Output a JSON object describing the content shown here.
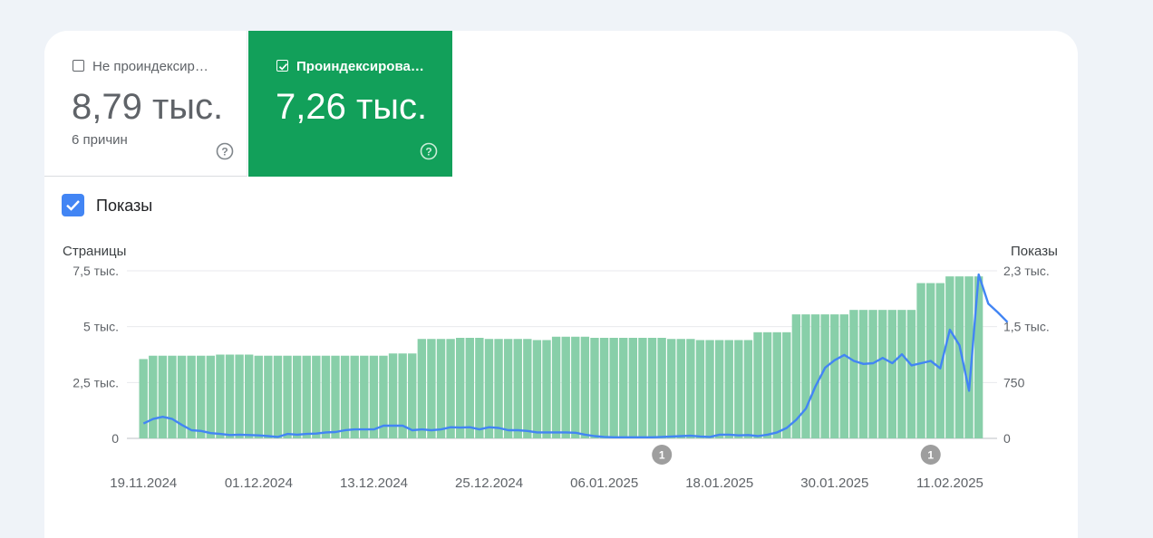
{
  "tiles": {
    "unindexed": {
      "label": "Не проиндексир…",
      "value": "8,79 тыс.",
      "subtitle": "6 причин",
      "checked": false
    },
    "indexed": {
      "label": "Проиндексирова…",
      "value": "7,26 тыс.",
      "checked": true,
      "color": "#12a05a"
    }
  },
  "impressions_toggle": {
    "label": "Показы",
    "checked": true,
    "color": "#4285f4"
  },
  "chart_data": {
    "type": "bar",
    "left_axis_title": "Страницы",
    "right_axis_title": "Показы",
    "left_ticks": [
      "0",
      "2,5 тыс.",
      "5 тыс.",
      "7,5 тыс."
    ],
    "right_ticks": [
      "0",
      "750",
      "1,5 тыс.",
      "2,3 тыс."
    ],
    "ylim_left": [
      0,
      7500
    ],
    "ylim_right": [
      0,
      2250
    ],
    "grid": true,
    "x_labels": [
      "19.11.2024",
      "01.12.2024",
      "13.12.2024",
      "25.12.2024",
      "06.01.2025",
      "18.01.2025",
      "30.01.2025",
      "11.02.2025"
    ],
    "annotations": [
      {
        "day": 54,
        "label": "1"
      },
      {
        "day": 82,
        "label": "1"
      }
    ],
    "series": [
      {
        "name": "Проиндексировано",
        "kind": "bar",
        "color": "#88cfa9",
        "values": [
          3550,
          3700,
          3700,
          3700,
          3700,
          3700,
          3700,
          3700,
          3750,
          3750,
          3750,
          3750,
          3700,
          3700,
          3700,
          3700,
          3700,
          3700,
          3700,
          3700,
          3700,
          3700,
          3700,
          3700,
          3700,
          3700,
          3800,
          3800,
          3800,
          4450,
          4450,
          4450,
          4450,
          4500,
          4500,
          4500,
          4450,
          4450,
          4450,
          4450,
          4450,
          4400,
          4400,
          4550,
          4550,
          4550,
          4550,
          4500,
          4500,
          4500,
          4500,
          4500,
          4500,
          4500,
          4500,
          4450,
          4450,
          4450,
          4400,
          4400,
          4400,
          4400,
          4400,
          4400,
          4750,
          4750,
          4750,
          4750,
          5550,
          5550,
          5550,
          5550,
          5550,
          5550,
          5750,
          5750,
          5750,
          5750,
          5750,
          5750,
          5750,
          6950,
          6950,
          6950,
          7250,
          7250,
          7250,
          7250
        ]
      },
      {
        "name": "Показы",
        "kind": "line",
        "color": "#4285f4",
        "values": [
          200,
          260,
          290,
          260,
          180,
          110,
          100,
          70,
          60,
          45,
          50,
          45,
          40,
          30,
          20,
          60,
          50,
          60,
          65,
          80,
          85,
          110,
          120,
          120,
          120,
          170,
          170,
          170,
          110,
          120,
          110,
          120,
          150,
          145,
          150,
          120,
          150,
          140,
          110,
          110,
          100,
          80,
          80,
          80,
          80,
          75,
          50,
          30,
          20,
          15,
          15,
          15,
          15,
          15,
          20,
          25,
          30,
          35,
          25,
          20,
          50,
          50,
          40,
          45,
          30,
          50,
          80,
          140,
          250,
          400,
          700,
          950,
          1050,
          1120,
          1040,
          1000,
          1010,
          1080,
          1010,
          1130,
          980,
          1010,
          1040,
          940,
          1460,
          1250,
          640,
          2200,
          1810,
          1690,
          1560
        ]
      }
    ]
  }
}
